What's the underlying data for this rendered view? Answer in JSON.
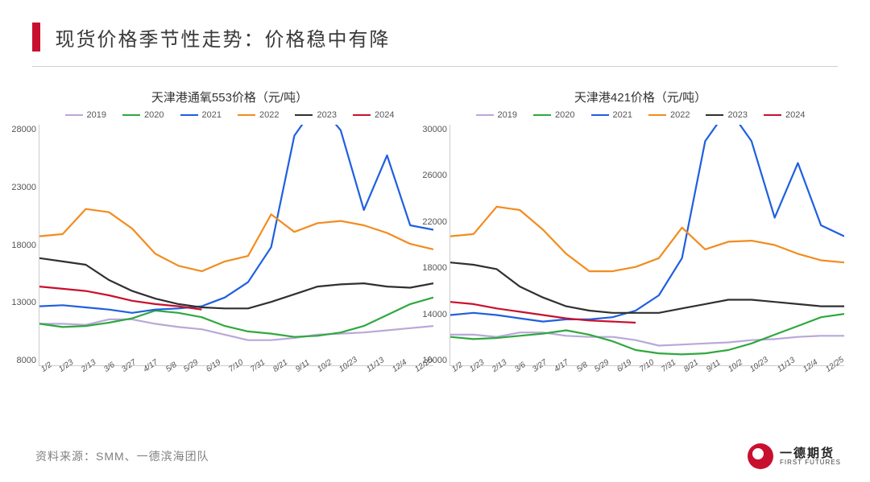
{
  "header": {
    "title": "现货价格季节性走势：价格稳中有降"
  },
  "footer": {
    "source": "资料来源：SMM、一德滨海团队"
  },
  "logo": {
    "cn": "一德期货",
    "en": "FIRST FUTURES"
  },
  "legend_years": [
    "2019",
    "2020",
    "2021",
    "2022",
    "2023",
    "2024"
  ],
  "series_colors": {
    "2019": "#b9a8d8",
    "2020": "#2fa83f",
    "2021": "#1f5fe0",
    "2022": "#f28c1e",
    "2023": "#303030",
    "2024": "#c8102e"
  },
  "xticks": [
    "1/2",
    "1/23",
    "2/13",
    "3/6",
    "3/27",
    "4/17",
    "5/8",
    "5/29",
    "6/19",
    "7/10",
    "7/31",
    "8/21",
    "9/11",
    "10/2",
    "10/23",
    "11/13",
    "12/4",
    "12/25"
  ],
  "chart_style": {
    "line_width": 2.2,
    "background": "#ffffff",
    "axis_color": "#cccccc",
    "tick_fontsize": 11,
    "title_fontsize": 15
  },
  "chart_left": {
    "title": "天津港通氧553价格（元/吨）",
    "type": "line",
    "ylim": [
      8000,
      30000
    ],
    "yticks": [
      8000,
      13000,
      18000,
      23000,
      28000
    ],
    "series": {
      "2019": [
        11800,
        11800,
        11700,
        12200,
        12200,
        11800,
        11500,
        11300,
        10800,
        10300,
        10300,
        10500,
        10800,
        10900,
        11000,
        11200,
        11400,
        11600
      ],
      "2020": [
        11800,
        11500,
        11600,
        11900,
        12300,
        13000,
        12800,
        12400,
        11600,
        11100,
        10900,
        10600,
        10700,
        11000,
        11600,
        12600,
        13600,
        14200
      ],
      "2021": [
        13400,
        13500,
        13300,
        13100,
        12800,
        13100,
        13200,
        13400,
        14200,
        15600,
        18800,
        29000,
        32000,
        29500,
        22200,
        27200,
        20800,
        20400
      ],
      "2022": [
        19800,
        20000,
        22300,
        22000,
        20500,
        18200,
        17100,
        16600,
        17500,
        18000,
        21800,
        20200,
        21000,
        21200,
        20800,
        20100,
        19100,
        18600
      ],
      "2023": [
        17800,
        17500,
        17200,
        15800,
        14800,
        14100,
        13600,
        13300,
        13200,
        13200,
        13800,
        14500,
        15200,
        15400,
        15500,
        15200,
        15100,
        15500
      ],
      "2024": [
        15200,
        15000,
        14800,
        14400,
        13900,
        13600,
        13400,
        13100
      ]
    }
  },
  "chart_right": {
    "title": "天津港421价格（元/吨）",
    "type": "line",
    "ylim": [
      10000,
      32000
    ],
    "yticks": [
      10000,
      14000,
      18000,
      22000,
      26000,
      30000
    ],
    "series": {
      "2019": [
        12800,
        12800,
        12600,
        13000,
        13000,
        12700,
        12600,
        12600,
        12300,
        11800,
        11900,
        12000,
        12100,
        12300,
        12400,
        12600,
        12700,
        12700
      ],
      "2020": [
        12600,
        12400,
        12500,
        12700,
        12900,
        13200,
        12800,
        12200,
        11400,
        11100,
        11000,
        11100,
        11400,
        12000,
        12800,
        13600,
        14400,
        14700
      ],
      "2021": [
        14600,
        14800,
        14600,
        14300,
        14000,
        14200,
        14200,
        14400,
        15000,
        16400,
        19800,
        30500,
        33500,
        30500,
        23500,
        28500,
        22800,
        21800
      ],
      "2022": [
        21800,
        22000,
        24500,
        24200,
        22400,
        20200,
        18600,
        18600,
        19000,
        19800,
        22600,
        20600,
        21300,
        21400,
        21000,
        20200,
        19600,
        19400
      ],
      "2023": [
        19400,
        19200,
        18800,
        17200,
        16200,
        15400,
        15000,
        14800,
        14800,
        14800,
        15200,
        15600,
        16000,
        16000,
        15800,
        15600,
        15400,
        15400
      ],
      "2024": [
        15800,
        15600,
        15200,
        14900,
        14600,
        14300,
        14100,
        14000,
        13900
      ]
    }
  }
}
